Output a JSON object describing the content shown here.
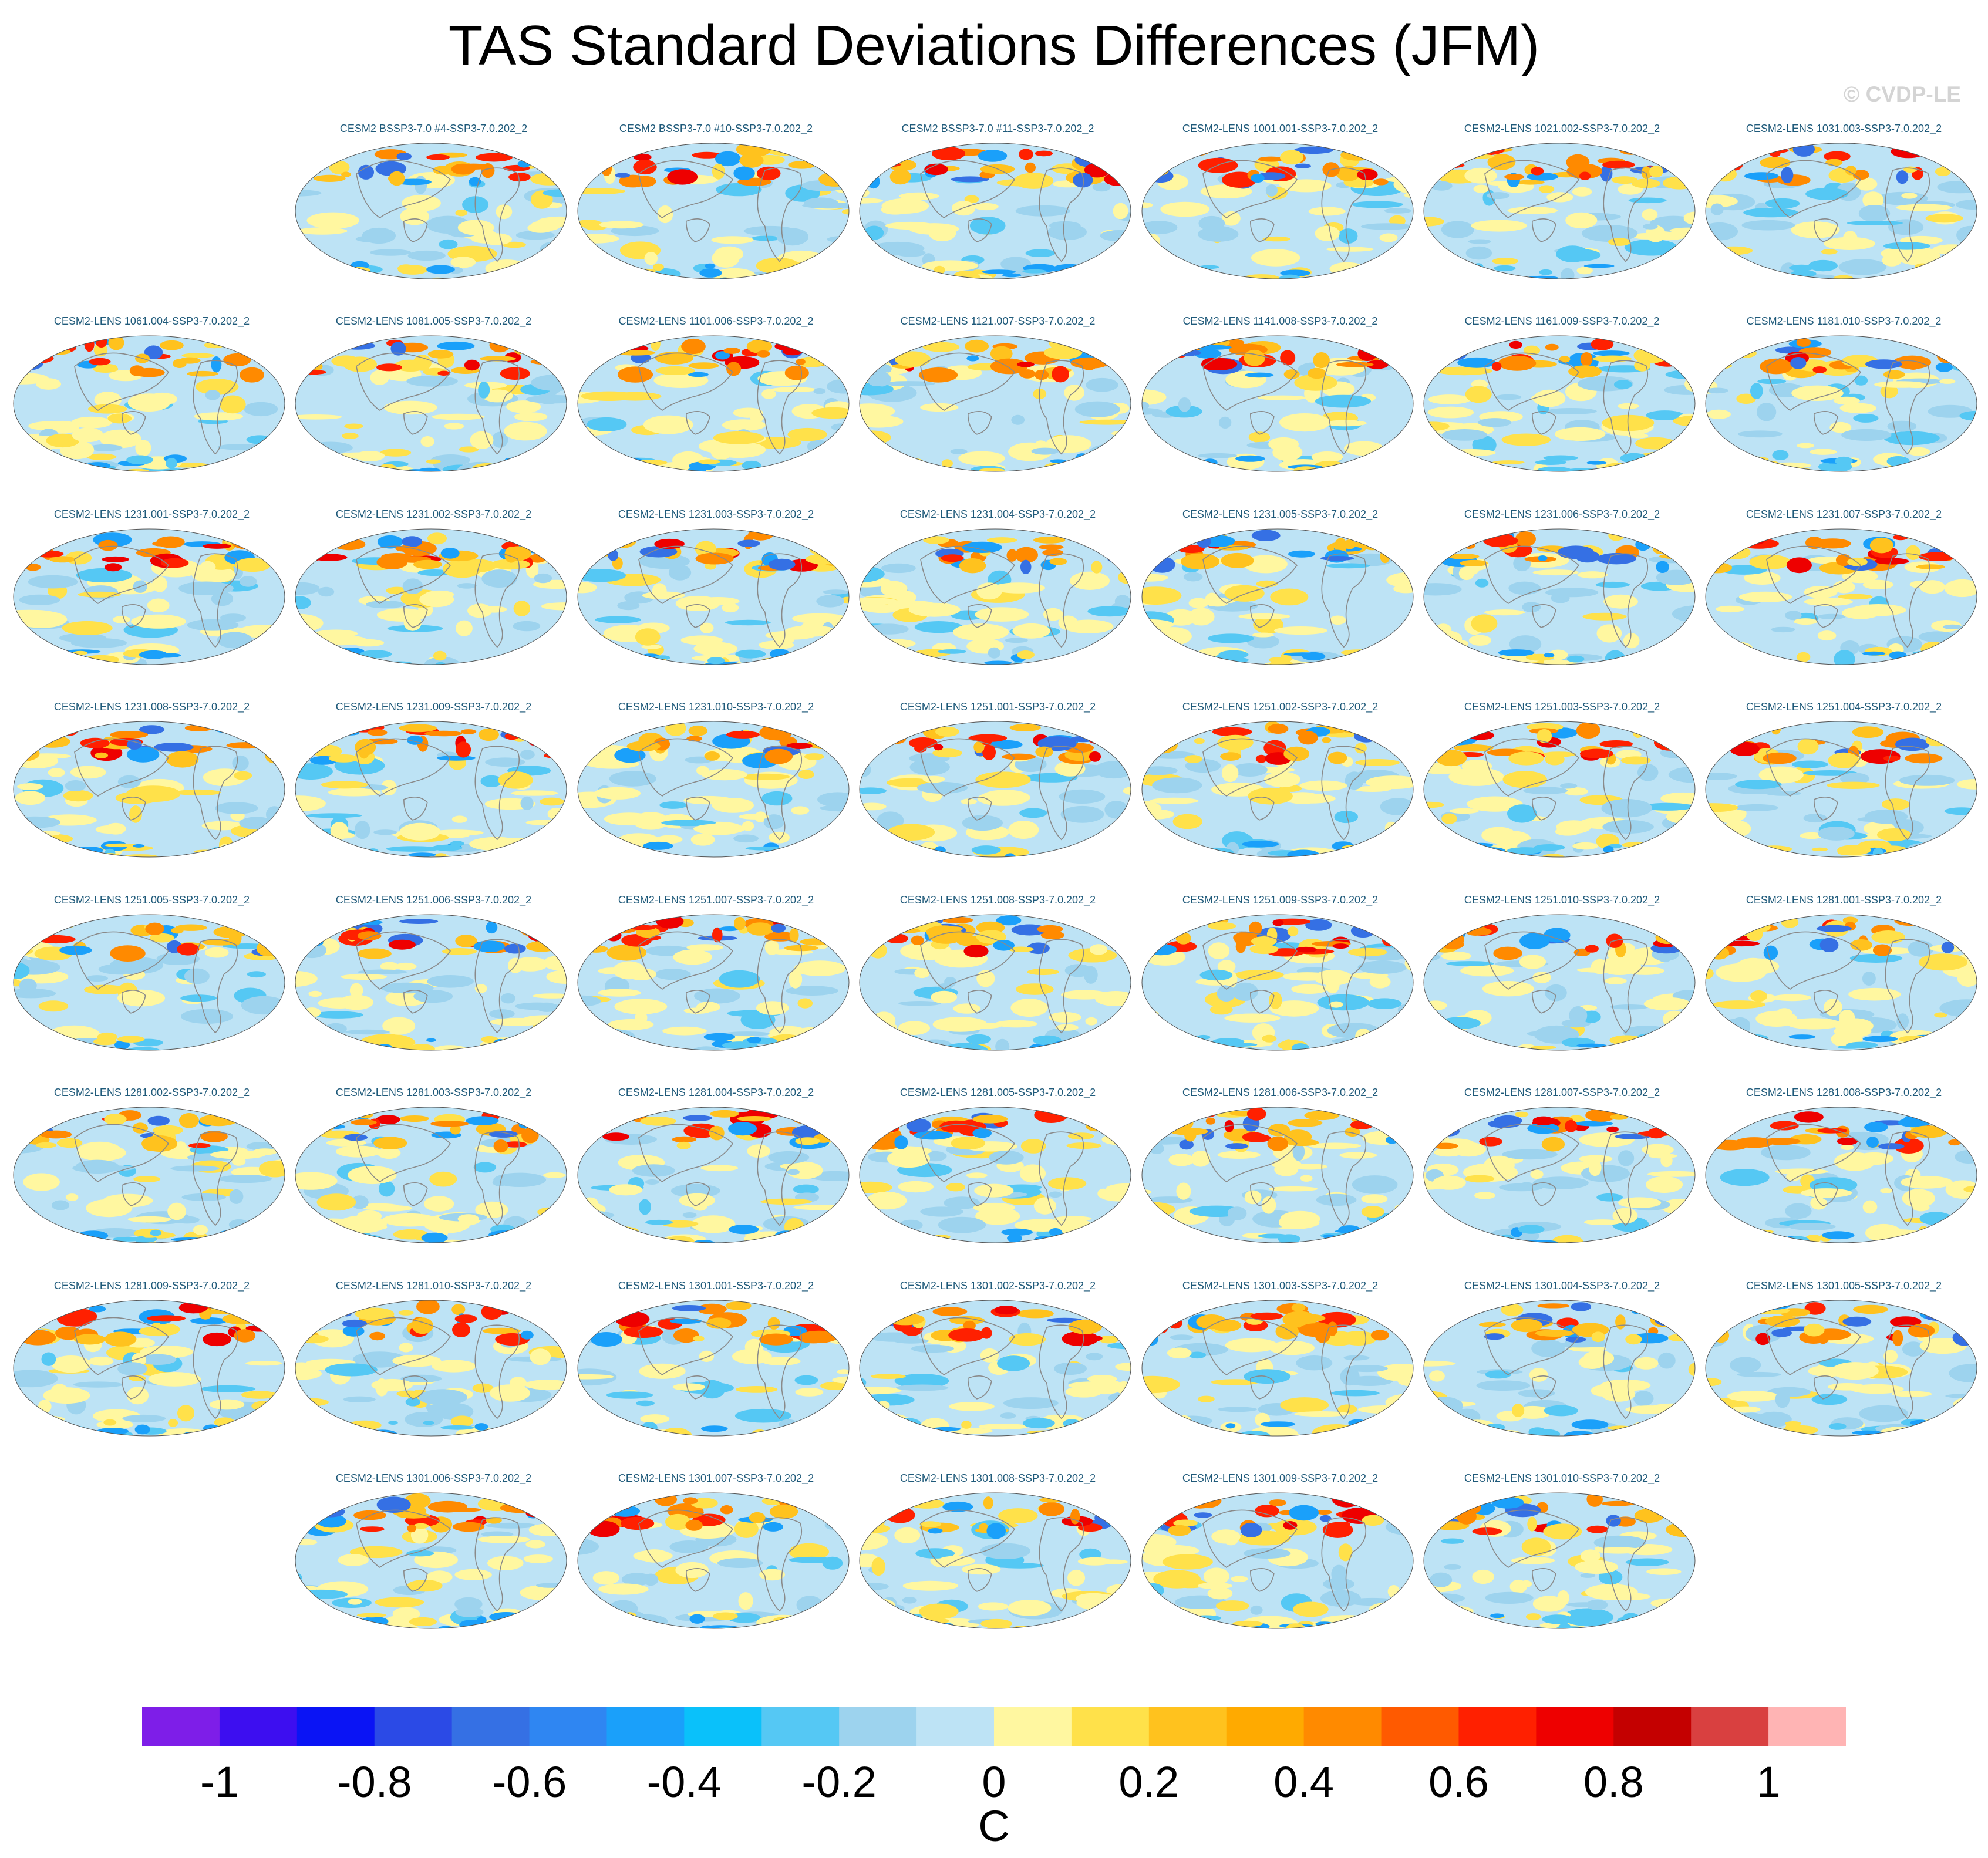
{
  "title": "TAS Standard Deviations Differences (JFM)",
  "watermark": "© CVDP-LE",
  "chart_data": {
    "type": "heatmap",
    "title": "TAS Standard Deviations Differences (JFM)",
    "projection": "Robinson global maps",
    "rows": [
      [
        "",
        "CESM2 BSSP3-7.0 #4-SSP3-7.0.202_2",
        "CESM2 BSSP3-7.0 #10-SSP3-7.0.202_2",
        "CESM2 BSSP3-7.0 #11-SSP3-7.0.202_2",
        "CESM2-LENS 1001.001-SSP3-7.0.202_2",
        "CESM2-LENS 1021.002-SSP3-7.0.202_2",
        "CESM2-LENS 1031.003-SSP3-7.0.202_2"
      ],
      [
        "CESM2-LENS 1061.004-SSP3-7.0.202_2",
        "CESM2-LENS 1081.005-SSP3-7.0.202_2",
        "CESM2-LENS 1101.006-SSP3-7.0.202_2",
        "CESM2-LENS 1121.007-SSP3-7.0.202_2",
        "CESM2-LENS 1141.008-SSP3-7.0.202_2",
        "CESM2-LENS 1161.009-SSP3-7.0.202_2",
        "CESM2-LENS 1181.010-SSP3-7.0.202_2"
      ],
      [
        "CESM2-LENS 1231.001-SSP3-7.0.202_2",
        "CESM2-LENS 1231.002-SSP3-7.0.202_2",
        "CESM2-LENS 1231.003-SSP3-7.0.202_2",
        "CESM2-LENS 1231.004-SSP3-7.0.202_2",
        "CESM2-LENS 1231.005-SSP3-7.0.202_2",
        "CESM2-LENS 1231.006-SSP3-7.0.202_2",
        "CESM2-LENS 1231.007-SSP3-7.0.202_2"
      ],
      [
        "CESM2-LENS 1231.008-SSP3-7.0.202_2",
        "CESM2-LENS 1231.009-SSP3-7.0.202_2",
        "CESM2-LENS 1231.010-SSP3-7.0.202_2",
        "CESM2-LENS 1251.001-SSP3-7.0.202_2",
        "CESM2-LENS 1251.002-SSP3-7.0.202_2",
        "CESM2-LENS 1251.003-SSP3-7.0.202_2",
        "CESM2-LENS 1251.004-SSP3-7.0.202_2"
      ],
      [
        "CESM2-LENS 1251.005-SSP3-7.0.202_2",
        "CESM2-LENS 1251.006-SSP3-7.0.202_2",
        "CESM2-LENS 1251.007-SSP3-7.0.202_2",
        "CESM2-LENS 1251.008-SSP3-7.0.202_2",
        "CESM2-LENS 1251.009-SSP3-7.0.202_2",
        "CESM2-LENS 1251.010-SSP3-7.0.202_2",
        "CESM2-LENS 1281.001-SSP3-7.0.202_2"
      ],
      [
        "CESM2-LENS 1281.002-SSP3-7.0.202_2",
        "CESM2-LENS 1281.003-SSP3-7.0.202_2",
        "CESM2-LENS 1281.004-SSP3-7.0.202_2",
        "CESM2-LENS 1281.005-SSP3-7.0.202_2",
        "CESM2-LENS 1281.006-SSP3-7.0.202_2",
        "CESM2-LENS 1281.007-SSP3-7.0.202_2",
        "CESM2-LENS 1281.008-SSP3-7.0.202_2"
      ],
      [
        "CESM2-LENS 1281.009-SSP3-7.0.202_2",
        "CESM2-LENS 1281.010-SSP3-7.0.202_2",
        "CESM2-LENS 1301.001-SSP3-7.0.202_2",
        "CESM2-LENS 1301.002-SSP3-7.0.202_2",
        "CESM2-LENS 1301.003-SSP3-7.0.202_2",
        "CESM2-LENS 1301.004-SSP3-7.0.202_2",
        "CESM2-LENS 1301.005-SSP3-7.0.202_2"
      ],
      [
        "",
        "CESM2-LENS 1301.006-SSP3-7.0.202_2",
        "CESM2-LENS 1301.007-SSP3-7.0.202_2",
        "CESM2-LENS 1301.008-SSP3-7.0.202_2",
        "CESM2-LENS 1301.009-SSP3-7.0.202_2",
        "CESM2-LENS 1301.010-SSP3-7.0.202_2",
        ""
      ]
    ],
    "colorbar": {
      "units": "C",
      "levels": [
        -1.1,
        -1.0,
        -0.9,
        -0.8,
        -0.7,
        -0.6,
        -0.5,
        -0.4,
        -0.3,
        -0.2,
        -0.1,
        0,
        0.1,
        0.2,
        0.3,
        0.4,
        0.5,
        0.6,
        0.7,
        0.8,
        0.9,
        1.0,
        1.1
      ],
      "colors": [
        "#7e1ee8",
        "#3d0ef0",
        "#0a14f5",
        "#2b4ae6",
        "#3570e4",
        "#2f86f2",
        "#1aa0fa",
        "#0ac1fa",
        "#55c8f4",
        "#9dd3ee",
        "#bde3f5",
        "#fff7a0",
        "#ffe14a",
        "#ffc21e",
        "#ffaa00",
        "#ff8a00",
        "#ff5a00",
        "#ff2000",
        "#ee0000",
        "#c40000",
        "#d94040",
        "#ffb4b4"
      ],
      "tick_labels": [
        "-1",
        "-0.8",
        "-0.6",
        "-0.4",
        "-0.2",
        "0",
        "0.2",
        "0.4",
        "0.6",
        "0.8",
        "1"
      ]
    }
  }
}
